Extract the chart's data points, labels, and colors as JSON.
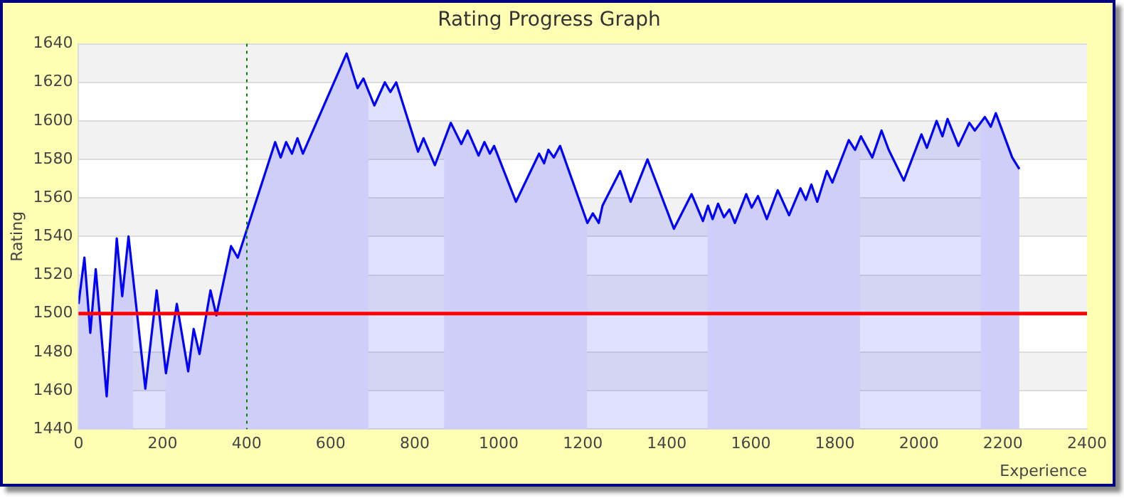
{
  "chart_data": {
    "type": "area",
    "title": "Rating Progress Graph",
    "xlabel": "Experience",
    "ylabel": "Rating",
    "xlim": [
      0,
      2400
    ],
    "xticks": [
      0,
      200,
      400,
      600,
      800,
      1000,
      1200,
      1400,
      1600,
      1800,
      2000,
      2200,
      2400
    ],
    "ylim": [
      1440,
      1640
    ],
    "yticks": [
      1440,
      1460,
      1480,
      1500,
      1520,
      1540,
      1560,
      1580,
      1600,
      1620,
      1640
    ],
    "grid": "y",
    "legend": false,
    "series": [
      {
        "color": "#0000ff",
        "x": [
          0,
          14,
          28,
          41,
          67,
          91,
          104,
          119,
          159,
          186,
          208,
          234,
          261,
          274,
          288,
          314,
          328,
          363,
          379,
          468,
          481,
          494,
          508,
          521,
          534,
          638,
          664,
          678,
          704,
          729,
          742,
          756,
          808,
          821,
          848,
          886,
          911,
          926,
          952,
          966,
          979,
          989,
          1041,
          1096,
          1108,
          1118,
          1131,
          1146,
          1211,
          1224,
          1238,
          1247,
          1289,
          1314,
          1354,
          1417,
          1459,
          1486,
          1498,
          1509,
          1522,
          1536,
          1549,
          1562,
          1589,
          1602,
          1617,
          1638,
          1664,
          1691,
          1718,
          1731,
          1744,
          1758,
          1781,
          1794,
          1833,
          1848,
          1862,
          1889,
          1911,
          1928,
          1964,
          2006,
          2019,
          2042,
          2056,
          2068,
          2094,
          2120,
          2133,
          2157,
          2171,
          2183,
          2222,
          2239
        ],
        "values": [
          1505,
          1529,
          1490,
          1523,
          1457,
          1539,
          1509,
          1540,
          1461,
          1512,
          1469,
          1505,
          1470,
          1492,
          1479,
          1512,
          1499,
          1535,
          1529,
          1589,
          1581,
          1589,
          1583,
          1591,
          1583,
          1635,
          1617,
          1622,
          1608,
          1620,
          1615,
          1620,
          1584,
          1591,
          1577,
          1599,
          1588,
          1595,
          1582,
          1589,
          1583,
          1587,
          1558,
          1583,
          1578,
          1585,
          1581,
          1587,
          1547,
          1552,
          1547,
          1556,
          1574,
          1558,
          1580,
          1544,
          1562,
          1548,
          1556,
          1549,
          1557,
          1550,
          1554,
          1547,
          1562,
          1555,
          1561,
          1549,
          1564,
          1551,
          1565,
          1559,
          1567,
          1558,
          1574,
          1568,
          1590,
          1585,
          1592,
          1581,
          1595,
          1585,
          1569,
          1593,
          1586,
          1600,
          1592,
          1601,
          1587,
          1599,
          1595,
          1602,
          1597,
          1604,
          1581,
          1575
        ]
      }
    ],
    "bands": [
      {
        "axis": "x",
        "from": 0,
        "to": 130,
        "color": "#ebebf9"
      },
      {
        "axis": "x",
        "from": 207,
        "to": 690,
        "color": "#ebebf9"
      },
      {
        "axis": "x",
        "from": 870,
        "to": 1210,
        "color": "#ebebf9"
      },
      {
        "axis": "x",
        "from": 1497,
        "to": 1860,
        "color": "#ebebf9"
      },
      {
        "axis": "x",
        "from": 2147,
        "to": 2239,
        "color": "#ebebf9"
      }
    ],
    "ref_lines": [
      {
        "axis": "y",
        "value": 1500,
        "color": "#ff0000",
        "line_style": "solid"
      },
      {
        "axis": "x",
        "value": 400,
        "color": "#008000",
        "line_style": "dotted"
      }
    ]
  }
}
